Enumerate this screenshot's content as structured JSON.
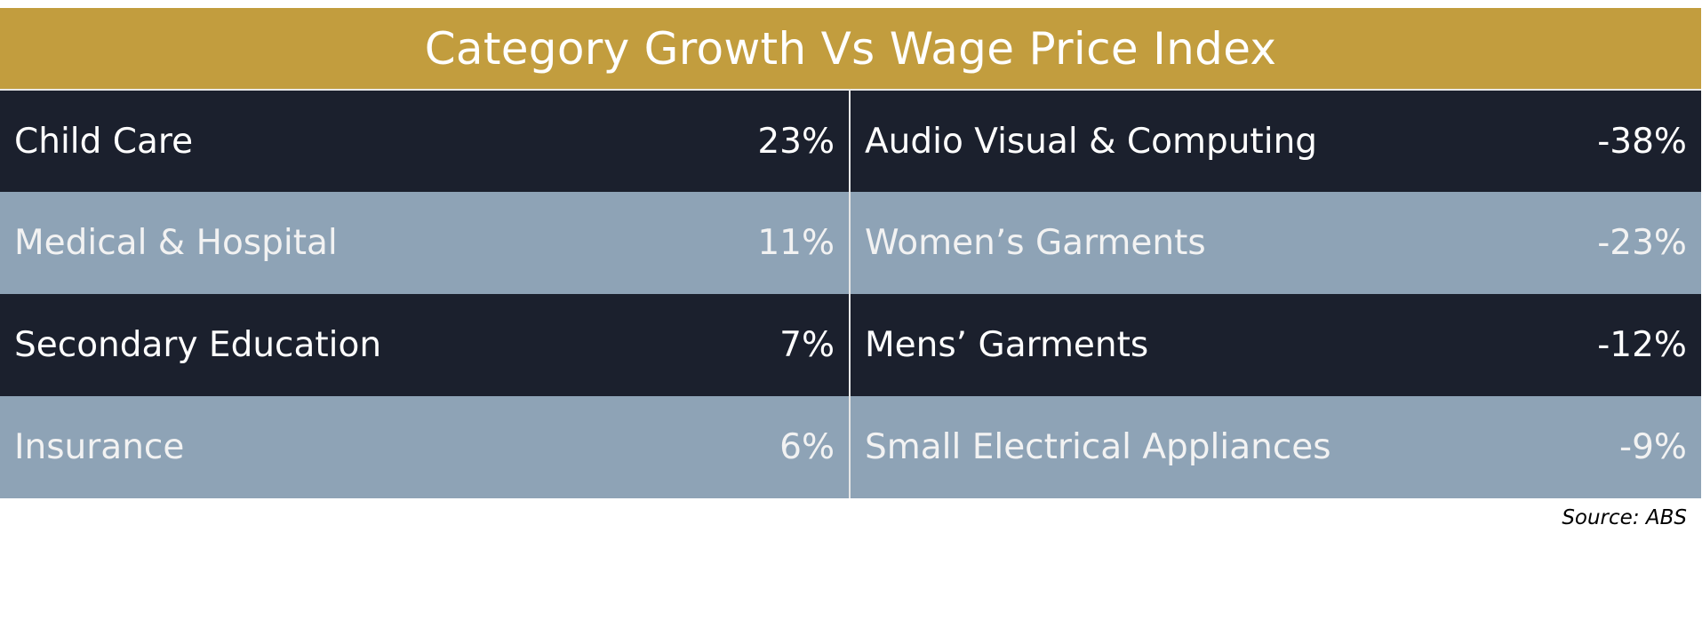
{
  "title": "Category Growth Vs Wage Price Index",
  "left_column": [
    {
      "label": "Child Care",
      "value": "23%"
    },
    {
      "label": "Medical & Hospital",
      "value": "11%"
    },
    {
      "label": "Secondary Education",
      "value": "7%"
    },
    {
      "label": "Insurance",
      "value": "6%"
    }
  ],
  "right_column": [
    {
      "label": "Audio Visual & Computing",
      "value": "-38%"
    },
    {
      "label": "Women’s Garments",
      "value": "-23%"
    },
    {
      "label": "Mens’ Garments",
      "value": "-12%"
    },
    {
      "label": "Small Electrical Appliances",
      "value": "-9%"
    }
  ],
  "source": "Source: ABS",
  "colors": {
    "title_bg": "#c29d3e",
    "dark_row": "#1b202d",
    "light_row": "#8ea3b6"
  }
}
